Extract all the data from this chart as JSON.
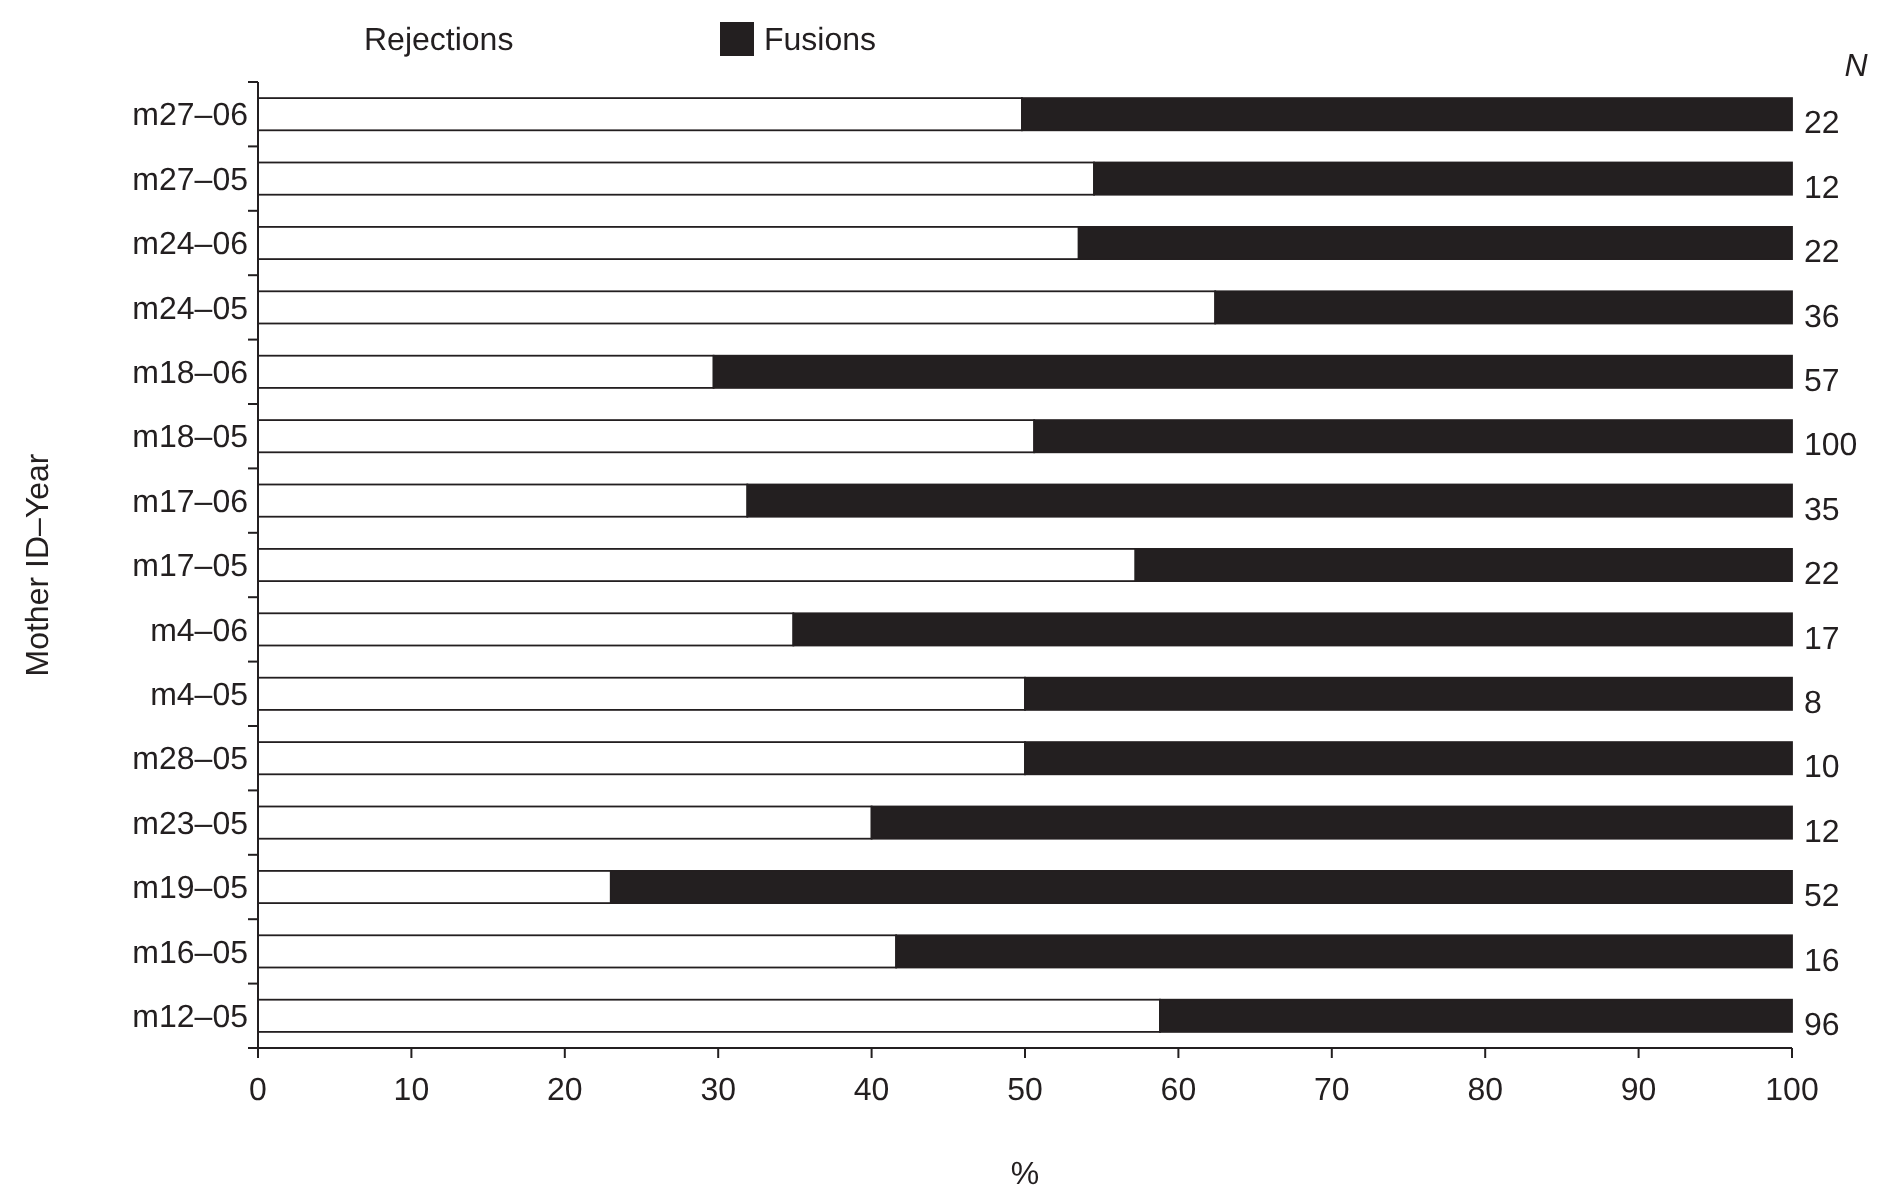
{
  "chart_data": {
    "type": "bar",
    "orientation": "horizontal",
    "stacked": true,
    "xlabel": "%",
    "ylabel": "Mother ID–Year",
    "legend": "top left",
    "categories": [
      "m27–06",
      "m27–05",
      "m24–06",
      "m24–05",
      "m18–06",
      "m18–05",
      "m17–06",
      "m17–05",
      "m4–06",
      "m4–05",
      "m28–05",
      "m23–05",
      "m19–05",
      "m16–05",
      "m12–05"
    ],
    "series": [
      {
        "name": "Rejections",
        "color": "#ffffff",
        "values": [
          49.8,
          54.5,
          53.5,
          62.4,
          29.7,
          50.6,
          31.9,
          57.2,
          34.9,
          50,
          50,
          40,
          23,
          41.6,
          58.8
        ]
      },
      {
        "name": "Fusions",
        "color": "#231f20",
        "values": [
          50.2,
          45.5,
          46.5,
          37.6,
          70.3,
          49.4,
          68.1,
          42.8,
          65.1,
          50,
          50,
          60,
          77,
          58.4,
          41.2
        ]
      }
    ],
    "xlim": [
      0,
      100
    ],
    "xticks": [
      0,
      10,
      20,
      30,
      40,
      50,
      60,
      70,
      80,
      90,
      100
    ],
    "annotations": [
      "N",
      "22",
      "12",
      "22",
      "36",
      "57",
      "100",
      "35",
      "22",
      "17",
      "8",
      "10",
      "12",
      "52",
      "16",
      "96"
    ]
  }
}
